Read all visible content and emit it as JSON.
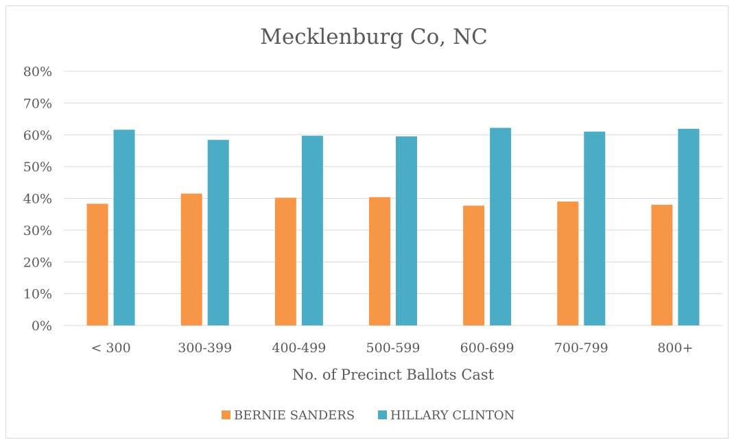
{
  "chart_data": {
    "type": "bar",
    "title": "Mecklenburg Co, NC",
    "xlabel": "No. of Precinct Ballots Cast",
    "ylabel": "",
    "categories": [
      "< 300",
      "300-399",
      "400-499",
      "500-599",
      "600-699",
      "700-799",
      "800+"
    ],
    "series": [
      {
        "name": "BERNIE SANDERS",
        "color": "#F79646",
        "values": [
          38.3,
          41.5,
          40.2,
          40.4,
          37.7,
          39.0,
          38.0
        ]
      },
      {
        "name": "HILLARY CLINTON",
        "color": "#4BACC6",
        "values": [
          61.6,
          58.4,
          59.7,
          59.5,
          62.2,
          61.0,
          61.9
        ]
      }
    ],
    "ylim": [
      0,
      80
    ],
    "yticks": [
      0,
      10,
      20,
      30,
      40,
      50,
      60,
      70,
      80
    ],
    "ytick_format": "%",
    "grid": true,
    "legend_position": "bottom"
  }
}
